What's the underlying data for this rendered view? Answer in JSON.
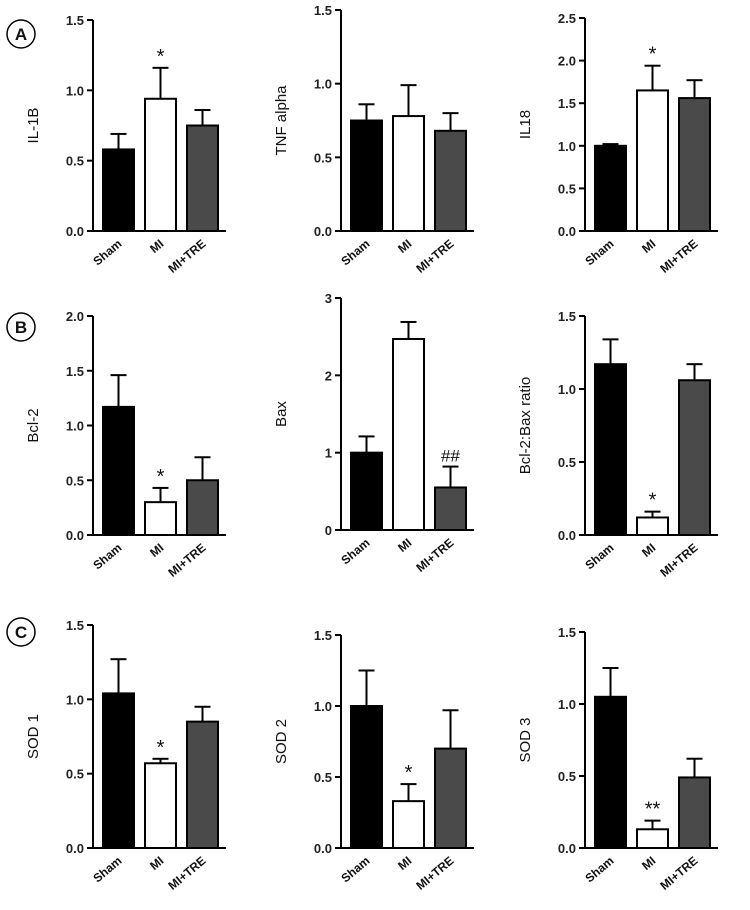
{
  "colors": {
    "sham": "#000000",
    "mi": "#ffffff",
    "mi_tre": "#4a4a4a",
    "axis": "#000000"
  },
  "panels": [
    {
      "letter": "A"
    },
    {
      "letter": "B"
    },
    {
      "letter": "C"
    }
  ],
  "chart_data": [
    {
      "type": "bar",
      "panel": "A",
      "ylabel": "IL-1B",
      "categories": [
        "Sham",
        "MI",
        "MI+TRE"
      ],
      "values": [
        0.58,
        0.94,
        0.75
      ],
      "errors": [
        0.11,
        0.22,
        0.11
      ],
      "ylim": [
        0,
        1.5
      ],
      "yticks": [
        0.0,
        0.5,
        1.0,
        1.5
      ],
      "tick_labels": [
        "0.0",
        "0.5",
        "1.0",
        "1.5"
      ],
      "annotations": [
        "",
        "*",
        ""
      ]
    },
    {
      "type": "bar",
      "panel": "A",
      "ylabel": "TNF alpha",
      "categories": [
        "Sham",
        "MI",
        "MI+TRE"
      ],
      "values": [
        0.75,
        0.78,
        0.68
      ],
      "errors": [
        0.11,
        0.21,
        0.12
      ],
      "ylim": [
        0,
        1.5
      ],
      "yticks": [
        0.0,
        0.5,
        1.0,
        1.5
      ],
      "tick_labels": [
        "0.0",
        "0.5",
        "1.0",
        "1.5"
      ],
      "annotations": [
        "",
        "",
        ""
      ]
    },
    {
      "type": "bar",
      "panel": "A",
      "ylabel": "IL18",
      "categories": [
        "Sham",
        "MI",
        "MI+TRE"
      ],
      "values": [
        1.0,
        1.65,
        1.56
      ],
      "errors": [
        0.02,
        0.29,
        0.21
      ],
      "ylim": [
        0,
        2.5
      ],
      "yticks": [
        0.0,
        0.5,
        1.0,
        1.5,
        2.0,
        2.5
      ],
      "tick_labels": [
        "0.0",
        "0.5",
        "1.0",
        "1.5",
        "2.0",
        "2.5"
      ],
      "annotations": [
        "",
        "*",
        ""
      ]
    },
    {
      "type": "bar",
      "panel": "B",
      "ylabel": "Bcl-2",
      "categories": [
        "Sham",
        "MI",
        "MI+TRE"
      ],
      "values": [
        1.17,
        0.3,
        0.5
      ],
      "errors": [
        0.29,
        0.13,
        0.21
      ],
      "ylim": [
        0,
        2.0
      ],
      "yticks": [
        0.0,
        0.5,
        1.0,
        1.5,
        2.0
      ],
      "tick_labels": [
        "0.0",
        "0.5",
        "1.0",
        "1.5",
        "2.0"
      ],
      "annotations": [
        "",
        "*",
        ""
      ]
    },
    {
      "type": "bar",
      "panel": "B",
      "ylabel": "Bax",
      "categories": [
        "Sham",
        "MI",
        "MI+TRE"
      ],
      "values": [
        1.0,
        2.47,
        0.55
      ],
      "errors": [
        0.21,
        0.22,
        0.27
      ],
      "ylim": [
        0,
        3
      ],
      "yticks": [
        0,
        1,
        2,
        3
      ],
      "tick_labels": [
        "0",
        "1",
        "2",
        "3"
      ],
      "annotations": [
        "",
        "",
        "##"
      ]
    },
    {
      "type": "bar",
      "panel": "B",
      "ylabel": "Bcl-2:Bax ratio",
      "categories": [
        "Sham",
        "MI",
        "MI+TRE"
      ],
      "values": [
        1.17,
        0.12,
        1.06
      ],
      "errors": [
        0.17,
        0.04,
        0.11
      ],
      "ylim": [
        0,
        1.5
      ],
      "yticks": [
        0.0,
        0.5,
        1.0,
        1.5
      ],
      "tick_labels": [
        "0.0",
        "0.5",
        "1.0",
        "1.5"
      ],
      "annotations": [
        "",
        "*",
        ""
      ]
    },
    {
      "type": "bar",
      "panel": "C",
      "ylabel": "SOD 1",
      "categories": [
        "Sham",
        "MI",
        "MI+TRE"
      ],
      "values": [
        1.04,
        0.57,
        0.85
      ],
      "errors": [
        0.23,
        0.03,
        0.1
      ],
      "ylim": [
        0,
        1.5
      ],
      "yticks": [
        0.0,
        0.5,
        1.0,
        1.5
      ],
      "tick_labels": [
        "0.0",
        "0.5",
        "1.0",
        "1.5"
      ],
      "annotations": [
        "",
        "*",
        ""
      ]
    },
    {
      "type": "bar",
      "panel": "C",
      "ylabel": "SOD 2",
      "categories": [
        "Sham",
        "MI",
        "MI+TRE"
      ],
      "values": [
        1.0,
        0.33,
        0.7
      ],
      "errors": [
        0.25,
        0.12,
        0.27
      ],
      "ylim": [
        0,
        1.5
      ],
      "yticks": [
        0.0,
        0.5,
        1.0,
        1.5
      ],
      "tick_labels": [
        "0.0",
        "0.5",
        "1.0",
        "1.5"
      ],
      "annotations": [
        "",
        "*",
        ""
      ]
    },
    {
      "type": "bar",
      "panel": "C",
      "ylabel": "SOD 3",
      "categories": [
        "Sham",
        "MI",
        "MI+TRE"
      ],
      "values": [
        1.05,
        0.13,
        0.49
      ],
      "errors": [
        0.2,
        0.06,
        0.13
      ],
      "ylim": [
        0,
        1.5
      ],
      "yticks": [
        0.0,
        0.5,
        1.0,
        1.5
      ],
      "tick_labels": [
        "0.0",
        "0.5",
        "1.0",
        "1.5"
      ],
      "annotations": [
        "",
        "**",
        ""
      ]
    }
  ]
}
